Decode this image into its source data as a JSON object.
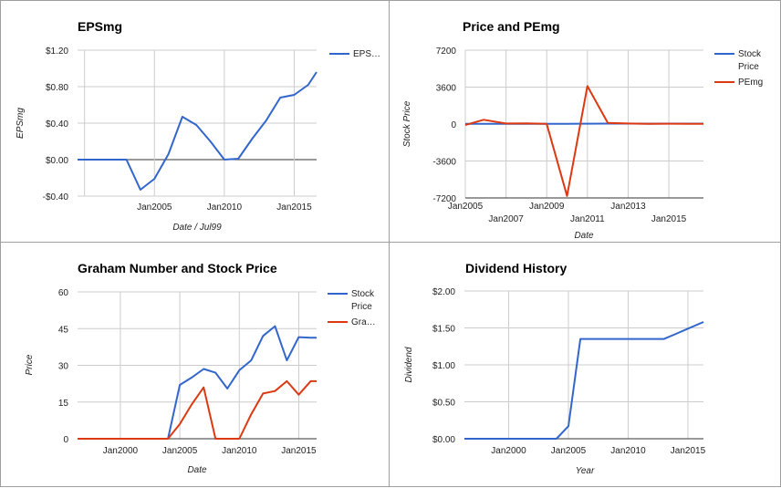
{
  "chart_data": [
    {
      "type": "line",
      "title": "EPSmg",
      "xlabel": "Date / Jul99",
      "ylabel": "EPSmg",
      "xlim": [
        1999.5,
        2016.6
      ],
      "ylim": [
        -0.4,
        1.2
      ],
      "yticks": [
        -0.4,
        0,
        0.4,
        0.8,
        1.2
      ],
      "ytick_labels": [
        "-$0.40",
        "$0.00",
        "$0.40",
        "$0.80",
        "$1.20"
      ],
      "xticks": [
        2005,
        2010,
        2015
      ],
      "xtick_labels": [
        "Jan2005",
        "Jan2010",
        "Jan2015"
      ],
      "xgrid": [
        2000,
        2005,
        2010,
        2015
      ],
      "legend": "right",
      "series": [
        {
          "name": "EPS…",
          "color": "#3366cc",
          "x": [
            1999.5,
            2001,
            2002,
            2003,
            2004,
            2005,
            2006,
            2007,
            2008,
            2009,
            2010,
            2011,
            2012,
            2013,
            2014,
            2015,
            2016,
            2016.6
          ],
          "y": [
            0,
            0,
            0,
            0,
            -0.33,
            -0.21,
            0.06,
            0.47,
            0.38,
            0.2,
            0,
            0.01,
            0.23,
            0.43,
            0.68,
            0.71,
            0.82,
            0.96
          ]
        }
      ]
    },
    {
      "type": "line",
      "title": "Price and PEmg",
      "xlabel": "Date",
      "ylabel": "Stock Price",
      "xlim": [
        2005,
        2016.7
      ],
      "ylim": [
        -7200,
        7200
      ],
      "yticks": [
        -7200,
        -3600,
        0,
        3600,
        7200
      ],
      "ytick_labels": [
        "-7200",
        "-3600",
        "0",
        "3600",
        "7200"
      ],
      "xticks": [
        2005,
        2007,
        2009,
        2011,
        2013,
        2015
      ],
      "xtick_labels": [
        "Jan2005",
        "Jan2007",
        "Jan2009",
        "Jan2011",
        "Jan2013",
        "Jan2015"
      ],
      "legend": "right",
      "series": [
        {
          "name": "Stock Price",
          "color": "#3366cc",
          "x": [
            2005,
            2006,
            2007,
            2008,
            2009,
            2010,
            2011,
            2012,
            2013,
            2014,
            2015,
            2016,
            2016.7
          ],
          "y": [
            22,
            25,
            28,
            27,
            20,
            28,
            32,
            42,
            46,
            32,
            41,
            41,
            41
          ]
        },
        {
          "name": "PEmg",
          "color": "#dc3912",
          "x": [
            2005,
            2005.9,
            2007,
            2008,
            2009,
            2010,
            2011,
            2012,
            2013,
            2014,
            2015,
            2016,
            2016.7
          ],
          "y": [
            -100,
            420,
            50,
            60,
            20,
            -7000,
            3700,
            110,
            55,
            20,
            40,
            30,
            30
          ]
        }
      ]
    },
    {
      "type": "line",
      "title": "Graham Number and Stock Price",
      "xlabel": "Date",
      "ylabel": "Price",
      "xlim": [
        1996.4,
        2016.5
      ],
      "ylim": [
        0,
        60
      ],
      "yticks": [
        0,
        15,
        30,
        45,
        60
      ],
      "ytick_labels": [
        "0",
        "15",
        "30",
        "45",
        "60"
      ],
      "xticks": [
        2000,
        2005,
        2010,
        2015
      ],
      "xtick_labels": [
        "Jan2000",
        "Jan2005",
        "Jan2010",
        "Jan2015"
      ],
      "legend": "right",
      "series": [
        {
          "name": "Stock Price",
          "color": "#3366cc",
          "x": [
            1996.4,
            2004,
            2005,
            2006,
            2007,
            2008,
            2009,
            2010,
            2011,
            2012,
            2013,
            2014,
            2015,
            2016,
            2016.5
          ],
          "y": [
            0,
            0,
            22,
            25,
            28.5,
            27,
            20.5,
            28,
            32,
            42,
            46,
            32,
            41.5,
            41.3,
            41.3
          ]
        },
        {
          "name": "Gra…",
          "color": "#dc3912",
          "x": [
            1996.4,
            2004,
            2005,
            2006,
            2007,
            2008,
            2009,
            2010,
            2011,
            2012,
            2013,
            2014,
            2015,
            2016,
            2016.5
          ],
          "y": [
            0,
            0,
            6,
            14,
            21,
            0,
            0,
            0,
            10,
            18.5,
            19.5,
            23.5,
            18,
            23.5,
            23.5
          ]
        }
      ]
    },
    {
      "type": "line",
      "title": "Dividend History",
      "xlabel": "Year",
      "ylabel": "Dividend",
      "xlim": [
        1996.3,
        2016.3
      ],
      "ylim": [
        0,
        2
      ],
      "yticks": [
        0,
        0.5,
        1,
        1.5,
        2
      ],
      "ytick_labels": [
        "$0.00",
        "$0.50",
        "$1.00",
        "$1.50",
        "$2.00"
      ],
      "xticks": [
        2000,
        2005,
        2010,
        2015
      ],
      "xtick_labels": [
        "Jan2000",
        "Jan2005",
        "Jan2010",
        "Jan2015"
      ],
      "legend": "none",
      "series": [
        {
          "color": "#3366cc",
          "x": [
            1996.3,
            2004,
            2005,
            2006,
            2007,
            2008,
            2009,
            2010,
            2011,
            2012,
            2013,
            2014,
            2015,
            2016.3
          ],
          "y": [
            0,
            0,
            0.17,
            1.35,
            1.35,
            1.35,
            1.35,
            1.35,
            1.35,
            1.35,
            1.35,
            1.42,
            1.49,
            1.58
          ]
        }
      ]
    }
  ]
}
